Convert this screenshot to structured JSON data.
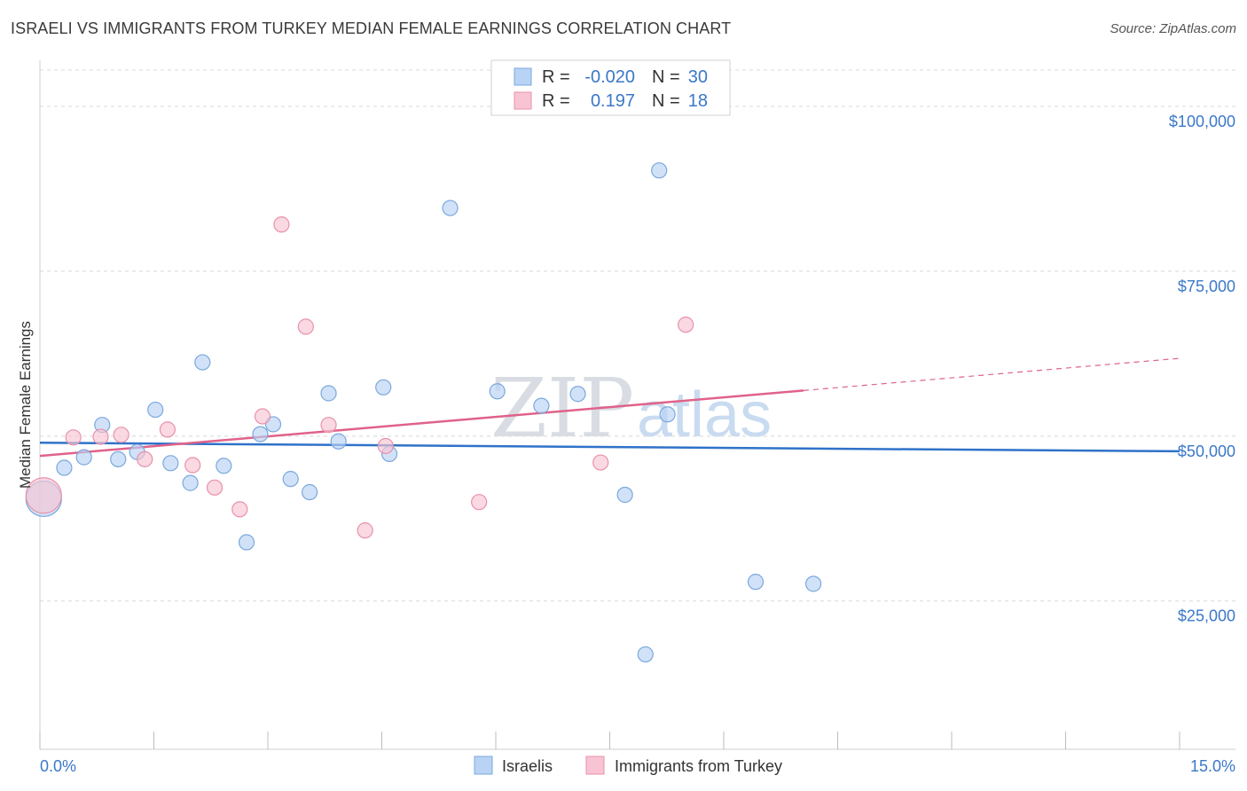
{
  "header": {
    "title": "ISRAELI VS IMMIGRANTS FROM TURKEY MEDIAN FEMALE EARNINGS CORRELATION CHART",
    "source": "Source: ZipAtlas.com"
  },
  "colors": {
    "israelis_fill": "#b8d3f4",
    "israelis_stroke": "#7aa8dc",
    "israelis_line": "#2f72c9",
    "turkey_fill": "#f8c4d3",
    "turkey_stroke": "#e891ab",
    "turkey_line": "#e0628a",
    "axis_text": "#3a78c8",
    "grid": "#d8d8d8"
  },
  "legend_top": {
    "rows": [
      {
        "r_label": "R =",
        "r_value": "-0.020",
        "n_label": "N =",
        "n_value": "30"
      },
      {
        "r_label": "R =",
        "r_value": "0.197",
        "n_label": "N =",
        "n_value": "18"
      }
    ]
  },
  "legend_bottom": {
    "items": [
      "Israelis",
      "Immigrants from Turkey"
    ]
  },
  "watermark": {
    "part1": "ZIP",
    "part2": "atlas"
  },
  "chart_data": {
    "type": "scatter",
    "title": "ISRAELI VS IMMIGRANTS FROM TURKEY MEDIAN FEMALE EARNINGS CORRELATION CHART",
    "xlabel": "",
    "ylabel": "Median Female Earnings",
    "xlim": [
      0,
      15
    ],
    "ylim": [
      2500,
      107000
    ],
    "x_tick_labels": [
      "0.0%",
      "15.0%"
    ],
    "y_ticks": [
      25000,
      50000,
      75000,
      100000
    ],
    "y_tick_labels": [
      "$25,000",
      "$50,000",
      "$75,000",
      "$100,000"
    ],
    "grid": true,
    "legend_position": "top-center",
    "series": [
      {
        "name": "Israelis",
        "r": -0.02,
        "n": 30,
        "trend": {
          "x": [
            0,
            15
          ],
          "y": [
            49000,
            47700
          ],
          "solid_to": 15
        },
        "points": [
          {
            "x": 0.05,
            "y": 40500,
            "big": true
          },
          {
            "x": 0.32,
            "y": 45200
          },
          {
            "x": 0.58,
            "y": 46800
          },
          {
            "x": 0.82,
            "y": 51700
          },
          {
            "x": 1.03,
            "y": 46500
          },
          {
            "x": 1.28,
            "y": 47600
          },
          {
            "x": 1.52,
            "y": 54000
          },
          {
            "x": 1.72,
            "y": 45900
          },
          {
            "x": 1.98,
            "y": 42900
          },
          {
            "x": 2.14,
            "y": 61200
          },
          {
            "x": 2.42,
            "y": 45500
          },
          {
            "x": 2.72,
            "y": 33900
          },
          {
            "x": 2.9,
            "y": 50300
          },
          {
            "x": 3.07,
            "y": 51800
          },
          {
            "x": 3.3,
            "y": 43500
          },
          {
            "x": 3.55,
            "y": 41500
          },
          {
            "x": 3.8,
            "y": 56500
          },
          {
            "x": 3.93,
            "y": 49200
          },
          {
            "x": 4.52,
            "y": 57400
          },
          {
            "x": 4.6,
            "y": 47300
          },
          {
            "x": 5.4,
            "y": 84600
          },
          {
            "x": 6.02,
            "y": 56800
          },
          {
            "x": 6.6,
            "y": 54600
          },
          {
            "x": 7.08,
            "y": 56400
          },
          {
            "x": 7.7,
            "y": 41100
          },
          {
            "x": 7.97,
            "y": 16900
          },
          {
            "x": 8.15,
            "y": 90300
          },
          {
            "x": 8.26,
            "y": 53300
          },
          {
            "x": 9.42,
            "y": 27900
          },
          {
            "x": 10.18,
            "y": 27600
          }
        ]
      },
      {
        "name": "Immigrants from Turkey",
        "r": 0.197,
        "n": 18,
        "trend": {
          "x": [
            0,
            15
          ],
          "y": [
            47000,
            61800
          ],
          "solid_to": 10.05
        },
        "points": [
          {
            "x": 0.05,
            "y": 41000,
            "big": true
          },
          {
            "x": 0.44,
            "y": 49800
          },
          {
            "x": 0.8,
            "y": 49900
          },
          {
            "x": 1.07,
            "y": 50200
          },
          {
            "x": 1.38,
            "y": 46500
          },
          {
            "x": 1.68,
            "y": 51000
          },
          {
            "x": 2.01,
            "y": 45600
          },
          {
            "x": 2.3,
            "y": 42200
          },
          {
            "x": 2.63,
            "y": 38900
          },
          {
            "x": 2.93,
            "y": 53000
          },
          {
            "x": 3.18,
            "y": 82100
          },
          {
            "x": 3.5,
            "y": 66600
          },
          {
            "x": 3.8,
            "y": 51700
          },
          {
            "x": 4.28,
            "y": 35700
          },
          {
            "x": 4.55,
            "y": 48500
          },
          {
            "x": 5.78,
            "y": 40000
          },
          {
            "x": 7.38,
            "y": 46000
          },
          {
            "x": 8.5,
            "y": 66900
          }
        ]
      }
    ]
  }
}
